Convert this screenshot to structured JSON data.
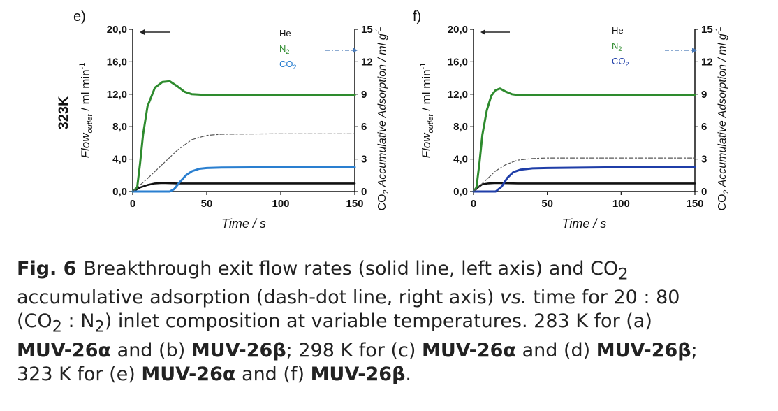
{
  "row_label": "323K",
  "colors": {
    "he": "#111111",
    "n2": "#2e8b2e",
    "co2_e": "#2a7fd0",
    "co2_f": "#1f3ea8",
    "accum": "#555555",
    "axis": "#111111"
  },
  "chart_data": [
    {
      "panel_label": "e)",
      "type": "line",
      "xlabel": "Time / s",
      "ylabel": "Flow",
      "ylabel_sub": "outlet",
      "ylabel_unit": " / ml min",
      "ylabel_sup": "-1",
      "y2label_prefix": "CO",
      "y2label_sub": "2",
      "y2label": " Accumulative Adsorption  / ml g",
      "y2label_sup": "-1",
      "xlim": [
        0,
        150
      ],
      "ylim": [
        0,
        20
      ],
      "y2lim": [
        0,
        15
      ],
      "xticks": [
        "0",
        "50",
        "100",
        "150"
      ],
      "yticks": [
        "0,0",
        "4,0",
        "8,0",
        "12,0",
        "16,0",
        "20,0"
      ],
      "y2ticks": [
        "0",
        "3",
        "6",
        "9",
        "12",
        "15"
      ],
      "legend": {
        "He": "He",
        "N2_base": "N",
        "N2_sub": "2",
        "CO2_base": "CO",
        "CO2_sub": "2"
      },
      "series": [
        {
          "name": "He",
          "color": "he",
          "axis": "left",
          "x": [
            0,
            5,
            10,
            15,
            20,
            30,
            50,
            100,
            150
          ],
          "y": [
            0,
            0.5,
            0.8,
            1.0,
            1.05,
            1.0,
            1.0,
            1.0,
            1.0
          ]
        },
        {
          "name": "N2",
          "color": "n2",
          "axis": "left",
          "x": [
            0,
            3,
            5,
            7,
            10,
            15,
            20,
            25,
            30,
            35,
            40,
            50,
            60,
            100,
            150
          ],
          "y": [
            0,
            0.5,
            3.5,
            7.0,
            10.5,
            12.8,
            13.5,
            13.6,
            13.0,
            12.3,
            12.0,
            11.9,
            11.9,
            11.9,
            11.9
          ]
        },
        {
          "name": "CO2",
          "color": "co2_e",
          "axis": "left",
          "x": [
            0,
            25,
            28,
            32,
            36,
            40,
            45,
            50,
            60,
            100,
            150
          ],
          "y": [
            0,
            0,
            0.3,
            1.2,
            2.0,
            2.5,
            2.8,
            2.9,
            2.95,
            3.0,
            3.0
          ]
        },
        {
          "name": "CO2 accumulative adsorption",
          "color": "accum",
          "axis": "right",
          "dashed": true,
          "x": [
            0,
            10,
            20,
            30,
            40,
            50,
            60,
            100,
            150
          ],
          "y": [
            0,
            1.2,
            2.5,
            3.8,
            4.8,
            5.2,
            5.3,
            5.35,
            5.35
          ]
        }
      ]
    },
    {
      "panel_label": "f)",
      "type": "line",
      "xlabel": "Time / s",
      "ylabel": "Flow",
      "ylabel_sub": "outlet",
      "ylabel_unit": " / ml min",
      "ylabel_sup": "-1",
      "y2label_prefix": "CO",
      "y2label_sub": "2",
      "y2label": " Accumulative Adsorption  / ml g",
      "y2label_sup": "-1",
      "xlim": [
        0,
        150
      ],
      "ylim": [
        0,
        20
      ],
      "y2lim": [
        0,
        15
      ],
      "xticks": [
        "0",
        "50",
        "100",
        "150"
      ],
      "yticks": [
        "0,0",
        "4,0",
        "8,0",
        "12,0",
        "16,0",
        "20,0"
      ],
      "y2ticks": [
        "0",
        "3",
        "6",
        "9",
        "12",
        "15"
      ],
      "legend": {
        "He": "He",
        "N2_base": "N",
        "N2_sub": "2",
        "CO2_base": "CO",
        "CO2_sub": "2"
      },
      "series": [
        {
          "name": "He",
          "color": "he",
          "axis": "left",
          "x": [
            0,
            3,
            6,
            10,
            15,
            30,
            50,
            100,
            150
          ],
          "y": [
            0,
            0.5,
            0.9,
            1.0,
            1.05,
            1.0,
            1.0,
            1.0,
            1.0
          ]
        },
        {
          "name": "N2",
          "color": "n2",
          "axis": "left",
          "x": [
            0,
            2,
            4,
            6,
            9,
            12,
            15,
            18,
            22,
            26,
            30,
            40,
            100,
            150
          ],
          "y": [
            0,
            0.5,
            3.5,
            7.0,
            10.0,
            11.8,
            12.5,
            12.7,
            12.3,
            12.0,
            11.9,
            11.9,
            11.9,
            11.9
          ]
        },
        {
          "name": "CO2",
          "color": "co2_f",
          "axis": "left",
          "x": [
            0,
            15,
            19,
            23,
            27,
            32,
            40,
            50,
            100,
            150
          ],
          "y": [
            0,
            0,
            0.6,
            1.7,
            2.4,
            2.7,
            2.85,
            2.9,
            3.0,
            3.0
          ]
        },
        {
          "name": "CO2 accumulative adsorption",
          "color": "accum",
          "axis": "right",
          "dashed": true,
          "x": [
            0,
            8,
            15,
            22,
            30,
            40,
            50,
            100,
            150
          ],
          "y": [
            0,
            1.0,
            1.9,
            2.5,
            2.9,
            3.05,
            3.1,
            3.1,
            3.1
          ]
        }
      ]
    }
  ],
  "caption": {
    "lead": "Fig. 6",
    "l1a": "Breakthrough exit flow rates (solid line, left axis) and CO",
    "l1sub": "2",
    "l2": "accumulative adsorption (dash-dot line, right axis) ",
    "l2it": "vs.",
    "l2b": " time for 20 : 80",
    "l3a": "(CO",
    "l3sub1": "2",
    "l3b": " : N",
    "l3sub2": "2",
    "l3c": ") inlet composition at variable temperatures. 283 K for (a)",
    "l4a": "MUV-26α",
    "l4b": " and (b) ",
    "l4c": "MUV-26β",
    "l4d": "; 298 K for (c) ",
    "l4e": "MUV-26α",
    "l4f": " and (d) ",
    "l4g": "MUV-26β",
    "l4h": ";",
    "l5a": "323 K for (e) ",
    "l5b": "MUV-26α",
    "l5c": " and (f) ",
    "l5d": "MUV-26β",
    "l5e": "."
  }
}
